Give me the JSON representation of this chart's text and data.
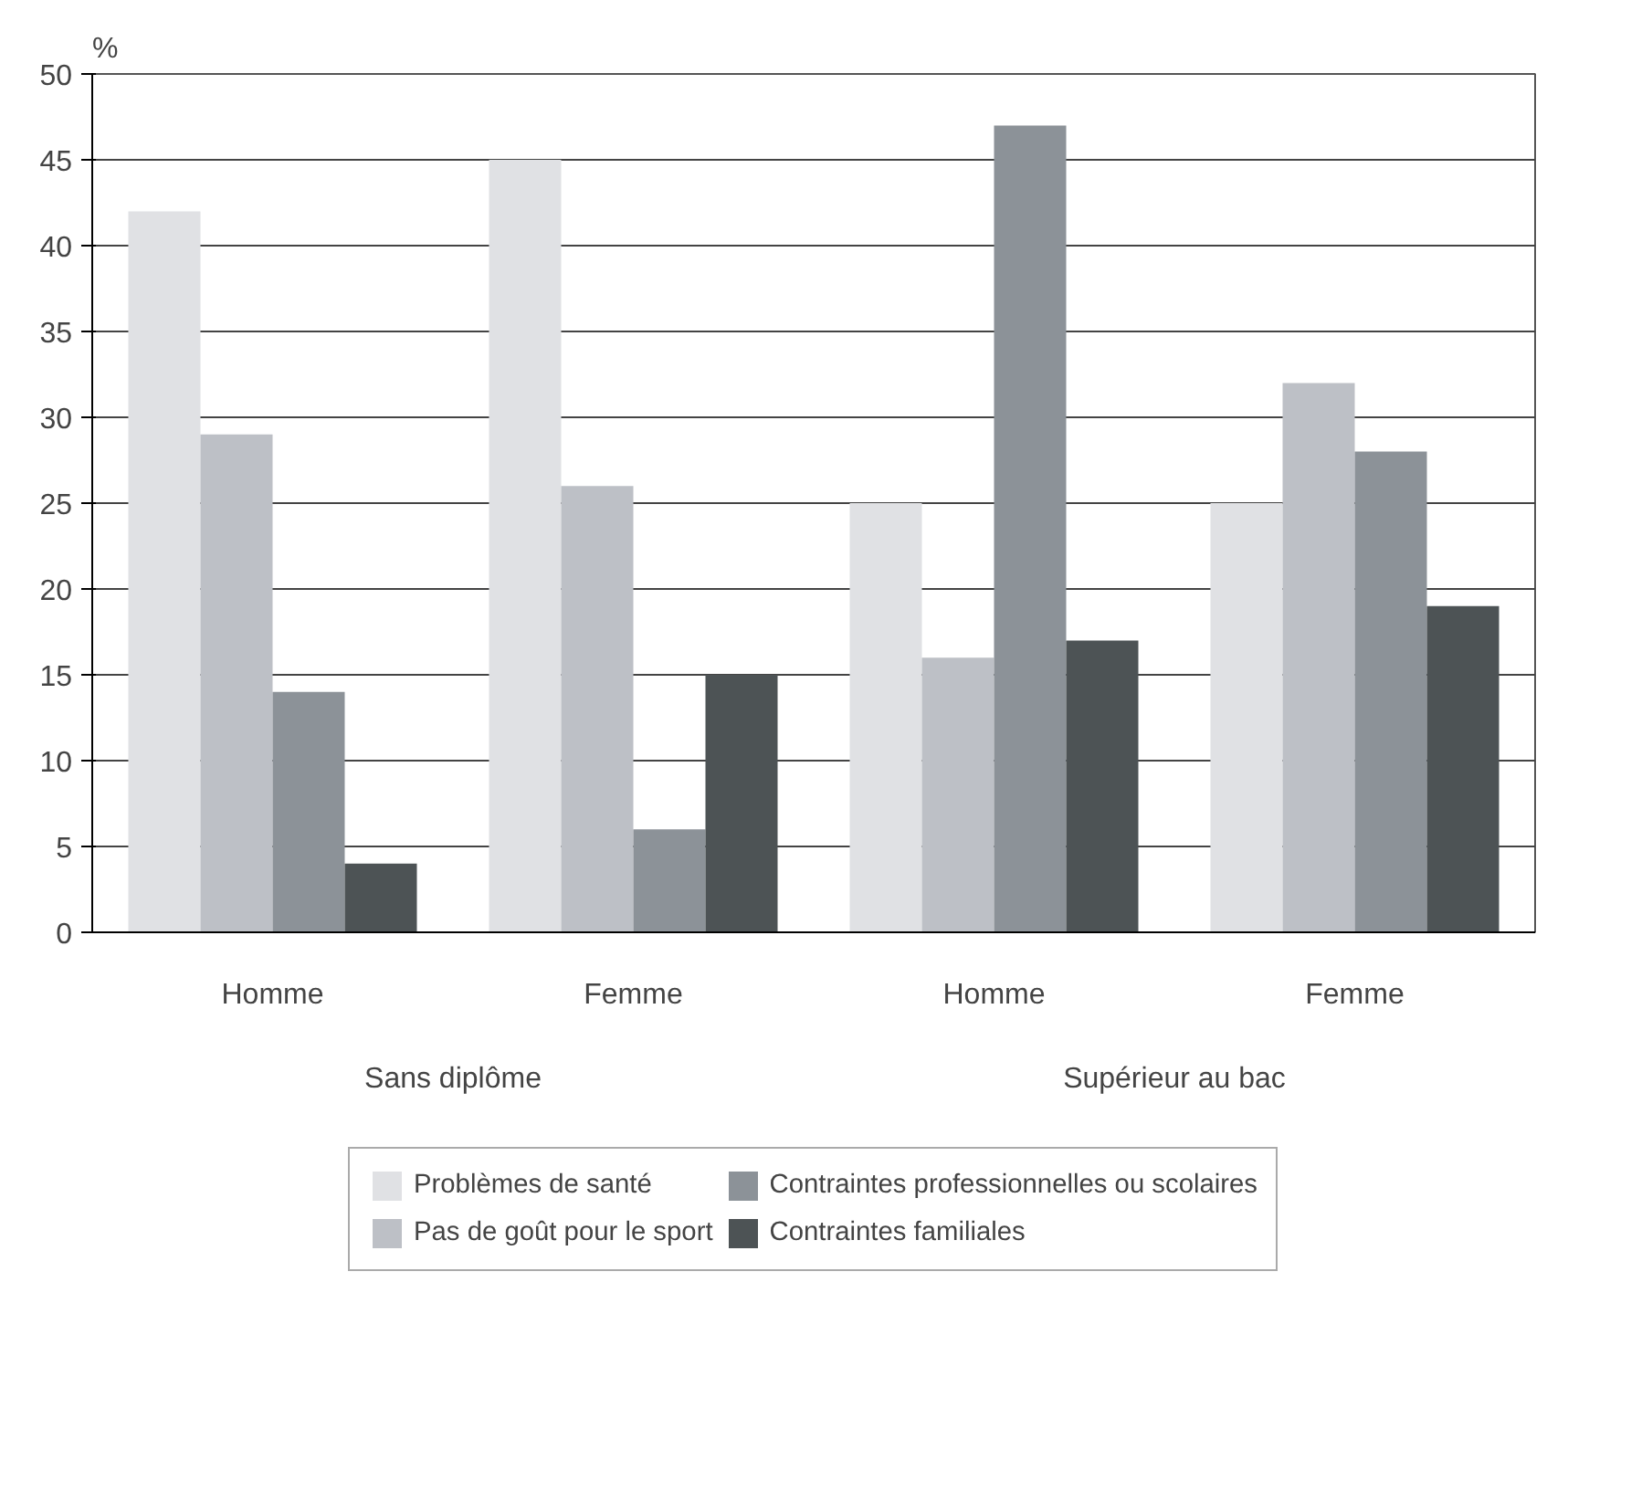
{
  "chart_data": {
    "type": "bar",
    "ylabel": "%",
    "categories": [
      "Homme",
      "Femme",
      "Homme",
      "Femme"
    ],
    "annotations": [
      "Sans diplôme",
      "Supérieur au bac"
    ],
    "series": [
      {
        "name": "Problèmes de santé",
        "color": "#e0e1e4",
        "values": [
          42,
          45,
          25,
          25
        ]
      },
      {
        "name": "Pas de goût pour le sport",
        "color": "#bdc0c6",
        "values": [
          29,
          26,
          16,
          32
        ]
      },
      {
        "name": "Contraintes professionnelles ou scolaires",
        "color": "#8c9298",
        "values": [
          14,
          6,
          47,
          28
        ]
      },
      {
        "name": "Contraintes familiales",
        "color": "#4d5355",
        "values": [
          4,
          15,
          17,
          19
        ]
      }
    ],
    "ylim": [
      0,
      50
    ],
    "yticks": [
      0,
      5,
      10,
      15,
      20,
      25,
      30,
      35,
      40,
      45,
      50
    ],
    "grid": "y",
    "legend": "bottom"
  }
}
